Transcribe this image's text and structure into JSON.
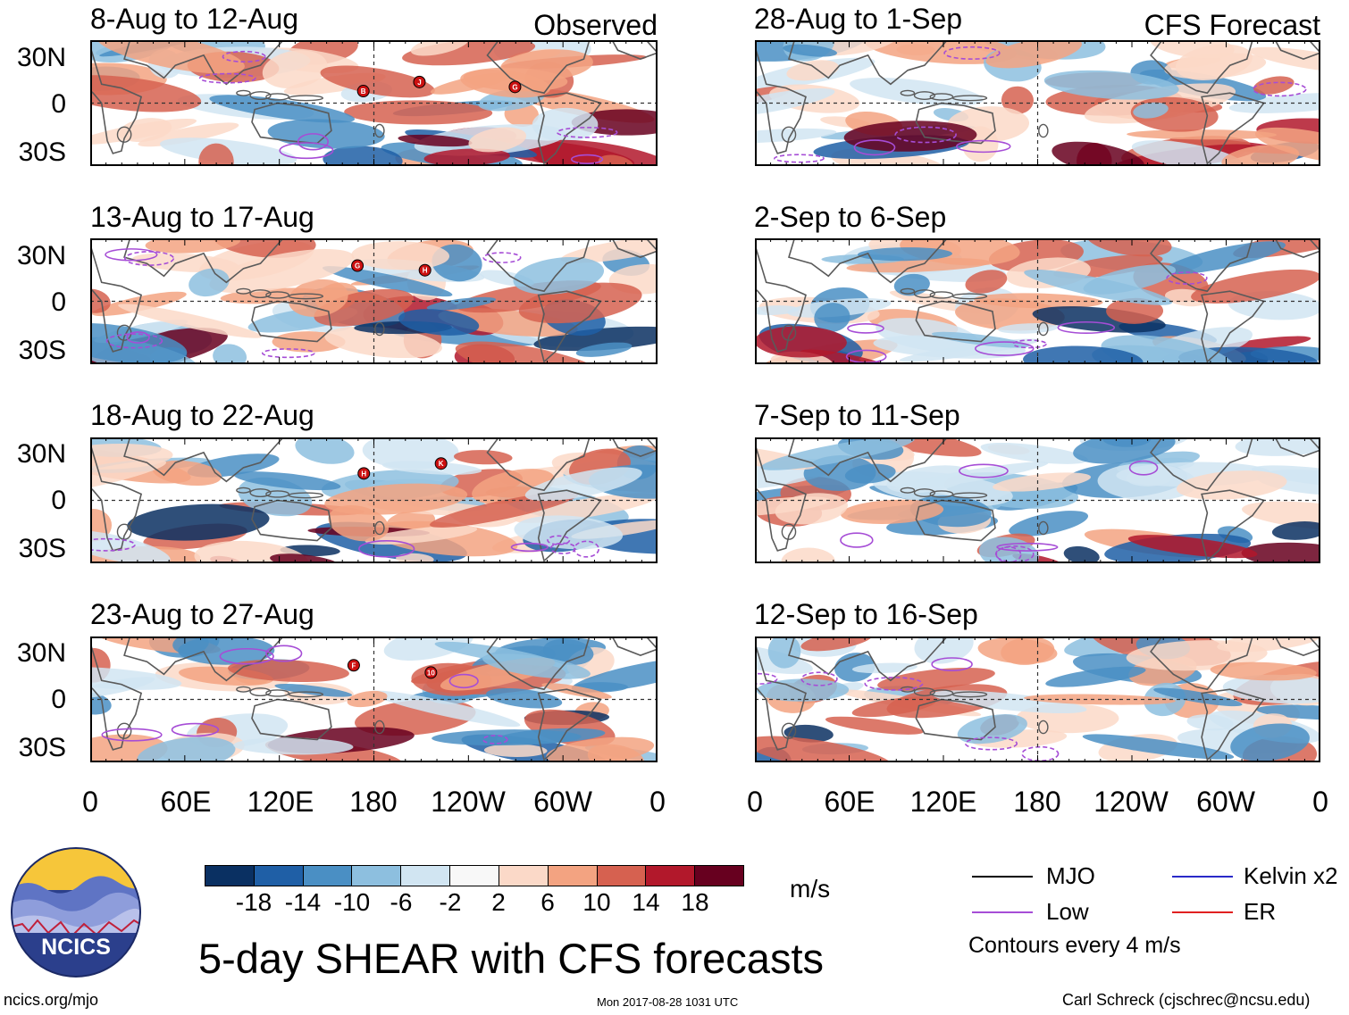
{
  "colors": {
    "scale": [
      "#0a3062",
      "#1f5fa6",
      "#4a8fc4",
      "#8dbfdf",
      "#d1e5f2",
      "#f8f8f8",
      "#fbd9c8",
      "#f3a381",
      "#d66150",
      "#b2182b",
      "#67001f"
    ],
    "coast": "#5a5a5a",
    "low_contour": "#a64dd6",
    "mjo": "#000000",
    "kelvin": "#2a2ac8",
    "er": "#e02020",
    "storm": "#cc1010"
  },
  "headers": {
    "observed": "Observed",
    "forecast": "CFS Forecast"
  },
  "panels": {
    "left": [
      {
        "title": "8-Aug to 12-Aug",
        "storms": [
          "B",
          "J",
          "G"
        ]
      },
      {
        "title": "13-Aug to 17-Aug",
        "storms": [
          "G",
          "H"
        ]
      },
      {
        "title": "18-Aug to 22-Aug",
        "storms": [
          "H",
          "K"
        ]
      },
      {
        "title": "23-Aug to 27-Aug",
        "storms": [
          "F",
          "10"
        ]
      }
    ],
    "right": [
      {
        "title": "28-Aug to 1-Sep"
      },
      {
        "title": "2-Sep to 6-Sep"
      },
      {
        "title": "7-Sep to 11-Sep"
      },
      {
        "title": "12-Sep to 16-Sep"
      }
    ]
  },
  "lat_labels": [
    "30N",
    "0",
    "30S"
  ],
  "lon_labels": [
    "0",
    "60E",
    "120E",
    "180",
    "120W",
    "60W",
    "0"
  ],
  "colorbar": {
    "labels": [
      "-18",
      "-14",
      "-10",
      "-6",
      "-2",
      "2",
      "6",
      "10",
      "14",
      "18"
    ],
    "units": "m/s"
  },
  "title": "5-day SHEAR with CFS forecasts",
  "logo": {
    "text": "NCICS"
  },
  "legend": {
    "mjo": "MJO",
    "kelvin": "Kelvin x2",
    "low": "Low",
    "er": "ER",
    "contours": "Contours every 4 m/s"
  },
  "footer": {
    "url": "ncics.org/mjo",
    "timestamp": "Mon 2017-08-28 1031 UTC",
    "author": "Carl Schreck (cjschrec@ncsu.edu)"
  }
}
